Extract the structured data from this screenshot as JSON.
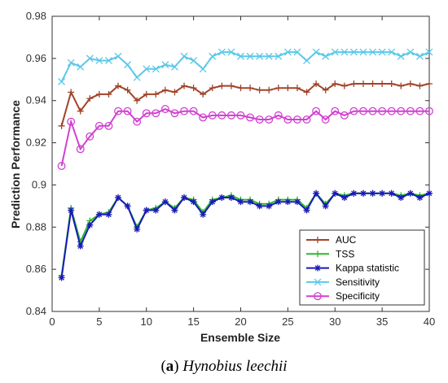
{
  "chart_data": {
    "type": "line",
    "title": "",
    "xlabel": "Ensemble Size",
    "ylabel": "Prediction Performance",
    "xlim": [
      0,
      40
    ],
    "ylim": [
      0.84,
      0.98
    ],
    "xticks": [
      0,
      5,
      10,
      15,
      20,
      25,
      30,
      35,
      40
    ],
    "yticks": [
      0.84,
      0.86,
      0.88,
      0.9,
      0.92,
      0.94,
      0.96,
      0.98
    ],
    "ytick_labels": [
      "0.84",
      "0.86",
      "0.88",
      "0.9",
      "0.92",
      "0.94",
      "0.96",
      "0.98"
    ],
    "legend_position": "bottom-right",
    "x": [
      1,
      2,
      3,
      4,
      5,
      6,
      7,
      8,
      9,
      10,
      11,
      12,
      13,
      14,
      15,
      16,
      17,
      18,
      19,
      20,
      21,
      22,
      23,
      24,
      25,
      26,
      27,
      28,
      29,
      30,
      31,
      32,
      33,
      34,
      35,
      36,
      37,
      38,
      39,
      40
    ],
    "series": [
      {
        "name": "AUC",
        "color": "#a0442a",
        "marker": "plus",
        "values": [
          0.928,
          0.944,
          0.935,
          0.941,
          0.943,
          0.943,
          0.947,
          0.945,
          0.94,
          0.943,
          0.943,
          0.945,
          0.944,
          0.947,
          0.946,
          0.943,
          0.946,
          0.947,
          0.947,
          0.946,
          0.946,
          0.945,
          0.945,
          0.946,
          0.946,
          0.946,
          0.944,
          0.948,
          0.945,
          0.948,
          0.947,
          0.948,
          0.948,
          0.948,
          0.948,
          0.948,
          0.947,
          0.948,
          0.947,
          0.948
        ]
      },
      {
        "name": "TSS",
        "color": "#2db82d",
        "marker": "plus",
        "values": [
          0.857,
          0.889,
          0.873,
          0.883,
          0.886,
          0.887,
          0.894,
          0.89,
          0.88,
          0.888,
          0.889,
          0.892,
          0.889,
          0.894,
          0.893,
          0.887,
          0.893,
          0.894,
          0.895,
          0.893,
          0.893,
          0.891,
          0.891,
          0.893,
          0.893,
          0.893,
          0.889,
          0.896,
          0.891,
          0.896,
          0.895,
          0.896,
          0.896,
          0.896,
          0.896,
          0.896,
          0.895,
          0.896,
          0.895,
          0.896
        ]
      },
      {
        "name": "Kappa statistic",
        "color": "#1a1ab8",
        "marker": "star",
        "values": [
          0.856,
          0.888,
          0.871,
          0.881,
          0.886,
          0.886,
          0.894,
          0.89,
          0.879,
          0.888,
          0.888,
          0.892,
          0.888,
          0.894,
          0.892,
          0.886,
          0.892,
          0.894,
          0.894,
          0.892,
          0.892,
          0.89,
          0.89,
          0.892,
          0.892,
          0.892,
          0.888,
          0.896,
          0.89,
          0.896,
          0.894,
          0.896,
          0.896,
          0.896,
          0.896,
          0.896,
          0.894,
          0.896,
          0.894,
          0.896
        ]
      },
      {
        "name": "Sensitivity",
        "color": "#5bc8e8",
        "marker": "x",
        "values": [
          0.949,
          0.958,
          0.956,
          0.96,
          0.959,
          0.959,
          0.961,
          0.957,
          0.951,
          0.955,
          0.955,
          0.957,
          0.956,
          0.961,
          0.959,
          0.955,
          0.961,
          0.963,
          0.963,
          0.961,
          0.961,
          0.961,
          0.961,
          0.961,
          0.963,
          0.963,
          0.959,
          0.963,
          0.961,
          0.963,
          0.963,
          0.963,
          0.963,
          0.963,
          0.963,
          0.963,
          0.961,
          0.963,
          0.961,
          0.963
        ]
      },
      {
        "name": "Specificity",
        "color": "#d040d0",
        "marker": "circle",
        "values": [
          0.909,
          0.93,
          0.917,
          0.923,
          0.928,
          0.928,
          0.935,
          0.935,
          0.93,
          0.934,
          0.934,
          0.936,
          0.934,
          0.935,
          0.935,
          0.932,
          0.933,
          0.933,
          0.933,
          0.933,
          0.932,
          0.931,
          0.931,
          0.933,
          0.931,
          0.931,
          0.931,
          0.935,
          0.931,
          0.935,
          0.933,
          0.935,
          0.935,
          0.935,
          0.935,
          0.935,
          0.935,
          0.935,
          0.935,
          0.935
        ]
      }
    ]
  },
  "caption": {
    "label": "a",
    "species": "Hynobius leechii"
  }
}
